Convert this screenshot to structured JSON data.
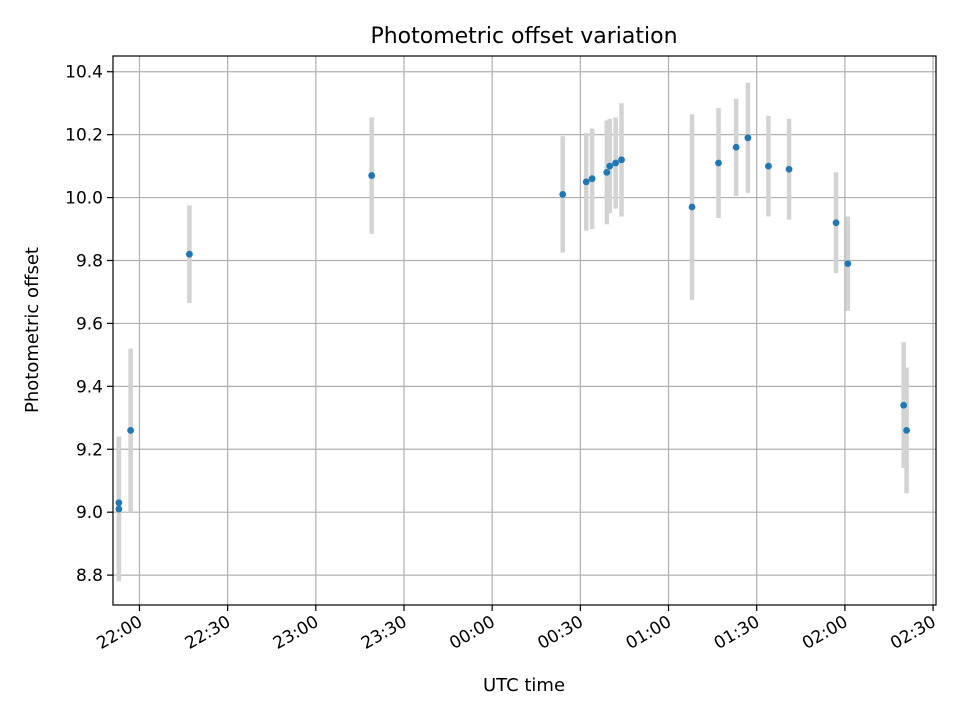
{
  "chart_data": {
    "type": "scatter",
    "title": "Photometric offset variation",
    "xlabel": "UTC time",
    "ylabel": "Photometric offset",
    "x_ticks": [
      "22:00",
      "22:30",
      "23:00",
      "23:30",
      "00:00",
      "00:30",
      "01:00",
      "01:30",
      "02:00",
      "02:30"
    ],
    "y_ticks": [
      "8.8",
      "9.0",
      "9.2",
      "9.4",
      "9.6",
      "9.8",
      "10.0",
      "10.2",
      "10.4"
    ],
    "xlim": [
      "21:51",
      "02:31"
    ],
    "ylim": [
      8.705,
      10.45
    ],
    "grid": true,
    "colors": {
      "point": "#1f77b4",
      "errorbar": "#d3d3d3",
      "grid": "#b0b0b0"
    },
    "points": [
      {
        "t": "21:53",
        "y": 9.03,
        "err": 0.21
      },
      {
        "t": "21:53",
        "y": 9.01,
        "err": 0.23
      },
      {
        "t": "21:57",
        "y": 9.26,
        "err": 0.26
      },
      {
        "t": "22:17",
        "y": 9.82,
        "err": 0.155
      },
      {
        "t": "23:19",
        "y": 10.07,
        "err": 0.185
      },
      {
        "t": "00:24",
        "y": 10.01,
        "err": 0.185
      },
      {
        "t": "00:32",
        "y": 10.05,
        "err": 0.155
      },
      {
        "t": "00:34",
        "y": 10.06,
        "err": 0.16
      },
      {
        "t": "00:39",
        "y": 10.08,
        "err": 0.165
      },
      {
        "t": "00:40",
        "y": 10.1,
        "err": 0.15
      },
      {
        "t": "00:42",
        "y": 10.11,
        "err": 0.145
      },
      {
        "t": "00:44",
        "y": 10.12,
        "err": 0.18
      },
      {
        "t": "01:08",
        "y": 9.97,
        "err": 0.295
      },
      {
        "t": "01:17",
        "y": 10.11,
        "err": 0.175
      },
      {
        "t": "01:23",
        "y": 10.16,
        "err": 0.155
      },
      {
        "t": "01:27",
        "y": 10.19,
        "err": 0.175
      },
      {
        "t": "01:34",
        "y": 10.1,
        "err": 0.16
      },
      {
        "t": "01:41",
        "y": 10.09,
        "err": 0.16
      },
      {
        "t": "01:57",
        "y": 9.92,
        "err": 0.16
      },
      {
        "t": "02:01",
        "y": 9.79,
        "err": 0.15
      },
      {
        "t": "02:20",
        "y": 9.34,
        "err": 0.2
      },
      {
        "t": "02:21",
        "y": 9.26,
        "err": 0.2
      }
    ]
  }
}
